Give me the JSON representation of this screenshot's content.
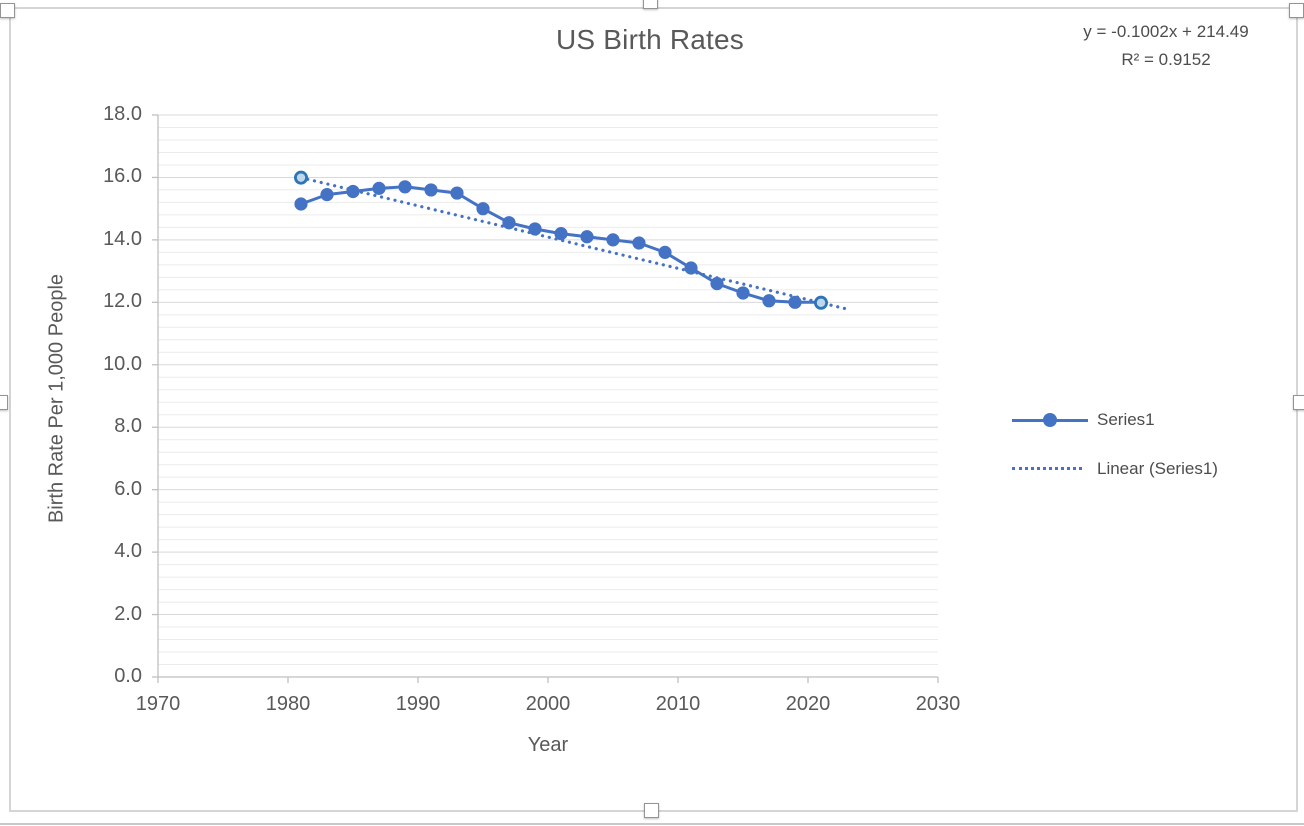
{
  "chart_data": {
    "type": "line",
    "title": "US Birth Rates",
    "xlabel": "Year",
    "ylabel": "Birth Rate Per 1,000 People",
    "x": [
      1981,
      1983,
      1985,
      1987,
      1989,
      1991,
      1993,
      1995,
      1997,
      1999,
      2001,
      2003,
      2005,
      2007,
      2009,
      2011,
      2013,
      2015,
      2017,
      2019,
      2021
    ],
    "series": [
      {
        "name": "Series1",
        "values": [
          15.15,
          15.45,
          15.55,
          15.65,
          15.7,
          15.6,
          15.5,
          15.0,
          14.55,
          14.35,
          14.2,
          14.1,
          14.0,
          13.9,
          13.6,
          13.1,
          12.6,
          12.3,
          12.05,
          12.0,
          12.0
        ]
      }
    ],
    "trendline": {
      "label": "Linear (Series1)",
      "equation": "y = -0.1002x + 214.49",
      "r_squared": "R² = 0.9152",
      "slope": -0.1002,
      "intercept": 214.49,
      "x_start": 1981,
      "x_end": 2023,
      "marker_points": [
        1981,
        2021
      ]
    },
    "xlim": [
      1970,
      2030
    ],
    "ylim": [
      0,
      18
    ],
    "x_ticks": [
      1970,
      1980,
      1990,
      2000,
      2010,
      2020,
      2030
    ],
    "y_ticks": [
      "18.0",
      "16.0",
      "14.0",
      "12.0",
      "10.0",
      "8.0",
      "6.0",
      "4.0",
      "2.0",
      "0.0"
    ],
    "y_major_unit": 2,
    "y_minor_unit": 0.4,
    "grid": "horizontal major and minor gridlines, no vertical gridlines",
    "legend_position": "right",
    "legend": [
      {
        "label": "Series1",
        "style": "solid-line-with-marker"
      },
      {
        "label": "Linear (Series1)",
        "style": "dotted-line"
      }
    ],
    "colors": {
      "series": "#4472C4",
      "trendline": "#4472C4",
      "trend_marker_fill": "#BDD7EE",
      "trend_marker_stroke": "#2E75B6",
      "grid_major": "#D9D9D9",
      "grid_minor": "#EBEBEB",
      "axis": "#BFBFBF",
      "text": "#595959"
    }
  }
}
